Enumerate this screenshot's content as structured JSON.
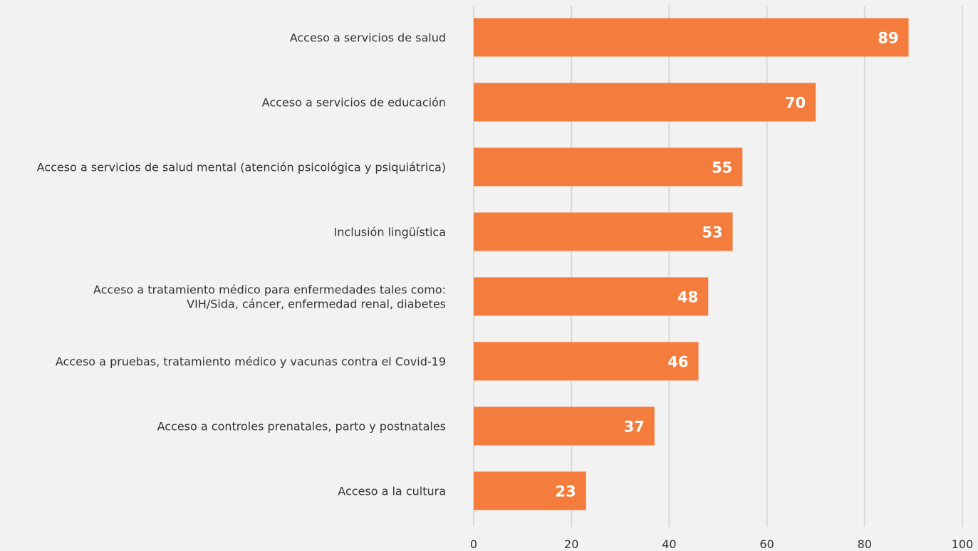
{
  "chart_data": {
    "type": "bar",
    "orientation": "horizontal",
    "categories": [
      [
        "Acceso a servicios de salud"
      ],
      [
        "Acceso a servicios de educación"
      ],
      [
        "Acceso a servicios de salud mental (atención psicológica y psiquiátrica)"
      ],
      [
        "Inclusión lingüística"
      ],
      [
        "Acceso a tratamiento médico para enfermedades tales como:",
        "VIH/Sida, cáncer, enfermedad renal, diabetes"
      ],
      [
        "Acceso a pruebas, tratamiento médico y vacunas contra el Covid-19"
      ],
      [
        "Acceso a controles prenatales, parto y postnatales"
      ],
      [
        "Acceso a la cultura"
      ]
    ],
    "values": [
      89,
      70,
      55,
      53,
      48,
      46,
      37,
      23
    ],
    "data_labels": [
      "89",
      "70",
      "55",
      "53",
      "48",
      "46",
      "37",
      "23"
    ],
    "xlim": [
      0,
      100
    ],
    "x_ticks": [
      0,
      20,
      40,
      60,
      80,
      100
    ],
    "x_tick_labels": [
      "0",
      "20",
      "40",
      "60",
      "80",
      "100"
    ],
    "grid": "vertical",
    "legend": "none",
    "bar_color": "#f47c3c",
    "gridline_color": "#d9d9d9",
    "background_color": "#f2f2f2"
  }
}
